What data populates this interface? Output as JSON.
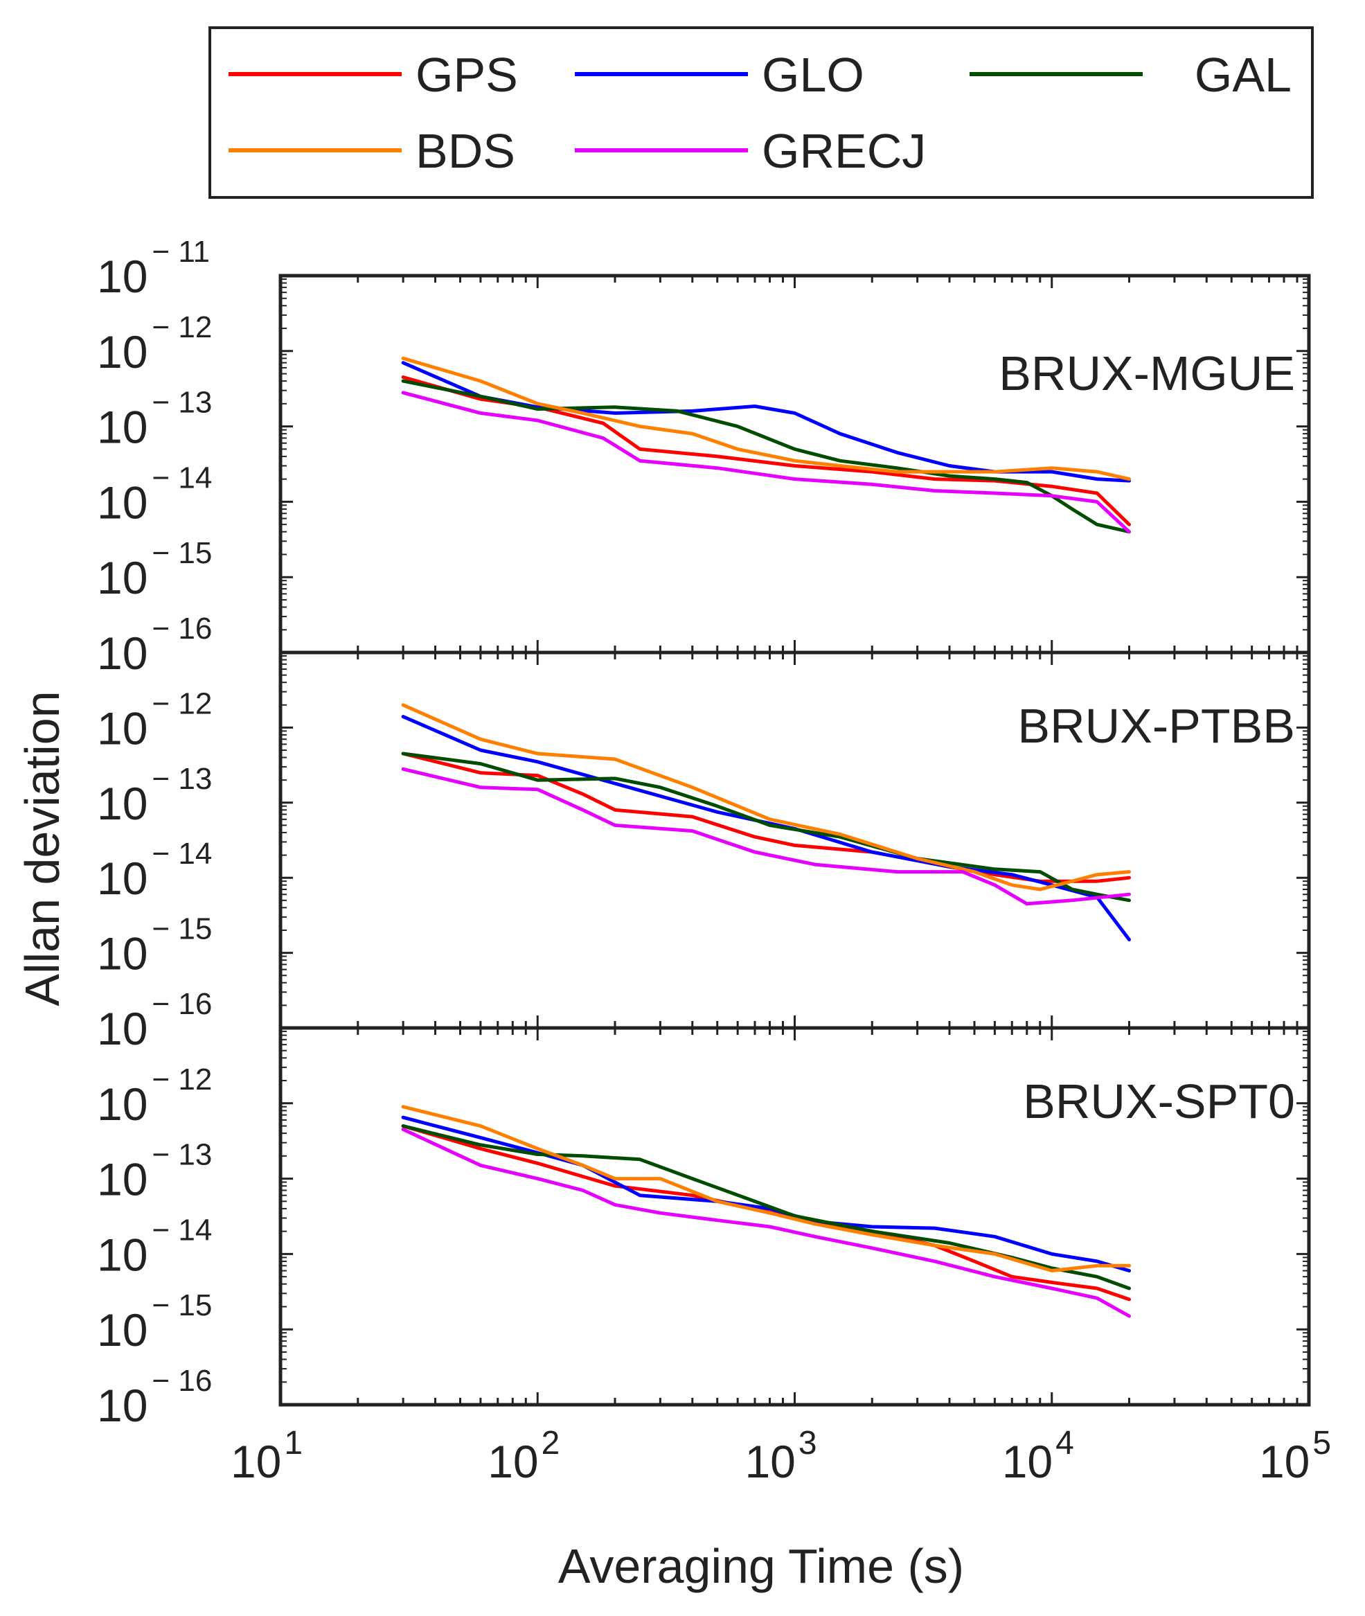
{
  "figure": {
    "xlabel": "Averaging Time (s)",
    "ylabel": "Allan deviation"
  },
  "legend": {
    "placement": "top",
    "entries": [
      {
        "name": "GPS",
        "color": "#ff0000"
      },
      {
        "name": "GLO",
        "color": "#0000ff"
      },
      {
        "name": "GAL",
        "color": "#004d00"
      },
      {
        "name": "BDS",
        "color": "#ff8000"
      },
      {
        "name": "GRECJ",
        "color": "#e600ff"
      }
    ]
  },
  "chart_data": [
    {
      "type": "line",
      "title": "BRUX-MGUE",
      "xlabel": "",
      "ylabel": "Allan deviation",
      "xscale": "log",
      "yscale": "log",
      "xlim": [
        10,
        100000
      ],
      "ylim": [
        1e-16,
        1e-11
      ],
      "xticks": [
        {
          "base": "10",
          "exp": "1"
        },
        {
          "base": "10",
          "exp": "2"
        },
        {
          "base": "10",
          "exp": "3"
        },
        {
          "base": "10",
          "exp": "4"
        },
        {
          "base": "10",
          "exp": "5"
        }
      ],
      "yticks": [
        {
          "base": "10",
          "exp": "− 11"
        },
        {
          "base": "10",
          "exp": "− 12"
        },
        {
          "base": "10",
          "exp": "− 13"
        },
        {
          "base": "10",
          "exp": "− 14"
        },
        {
          "base": "10",
          "exp": "− 15"
        },
        {
          "base": "10",
          "exp": "− 16"
        }
      ],
      "series": [
        {
          "name": "GPS",
          "color": "#ff0000",
          "x": [
            30,
            60,
            100,
            180,
            250,
            500,
            1000,
            2000,
            3500,
            6000,
            10000,
            15000,
            20000
          ],
          "y": [
            4.5e-13,
            2.3e-13,
            1.8e-13,
            1.1e-13,
            5e-14,
            4e-14,
            3e-14,
            2.5e-14,
            2e-14,
            1.9e-14,
            1.6e-14,
            1.3e-14,
            5e-15
          ]
        },
        {
          "name": "GLO",
          "color": "#0000ff",
          "x": [
            30,
            60,
            100,
            200,
            400,
            700,
            1000,
            1500,
            2500,
            4000,
            6000,
            10000,
            15000,
            20000
          ],
          "y": [
            7e-13,
            2.5e-13,
            1.8e-13,
            1.5e-13,
            1.6e-13,
            1.85e-13,
            1.5e-13,
            8e-14,
            4.5e-14,
            3e-14,
            2.5e-14,
            2.5e-14,
            2e-14,
            1.9e-14
          ]
        },
        {
          "name": "GAL",
          "color": "#004d00",
          "x": [
            30,
            60,
            100,
            200,
            350,
            600,
            1000,
            1500,
            2500,
            4000,
            6000,
            8000,
            10000,
            12000,
            15000,
            20000
          ],
          "y": [
            4e-13,
            2.5e-13,
            1.7e-13,
            1.8e-13,
            1.6e-13,
            1e-13,
            5e-14,
            3.5e-14,
            2.8e-14,
            2.2e-14,
            2e-14,
            1.8e-14,
            1.2e-14,
            8e-15,
            5e-15,
            4e-15
          ]
        },
        {
          "name": "BDS",
          "color": "#ff8000",
          "x": [
            30,
            60,
            100,
            150,
            250,
            400,
            600,
            1000,
            1500,
            2500,
            4000,
            6000,
            10000,
            15000,
            20000
          ],
          "y": [
            8e-13,
            4e-13,
            2e-13,
            1.5e-13,
            1e-13,
            8e-14,
            5e-14,
            3.5e-14,
            3e-14,
            2.5e-14,
            2.5e-14,
            2.5e-14,
            2.8e-14,
            2.5e-14,
            2e-14
          ]
        },
        {
          "name": "GRECJ",
          "color": "#e600ff",
          "x": [
            30,
            60,
            100,
            180,
            250,
            500,
            1000,
            2000,
            3500,
            6000,
            10000,
            15000,
            20000
          ],
          "y": [
            2.8e-13,
            1.5e-13,
            1.2e-13,
            7e-14,
            3.5e-14,
            2.8e-14,
            2e-14,
            1.7e-14,
            1.4e-14,
            1.3e-14,
            1.2e-14,
            1e-14,
            4e-15
          ]
        }
      ]
    },
    {
      "type": "line",
      "title": "BRUX-PTBB",
      "xlabel": "",
      "ylabel": "Allan deviation",
      "xscale": "log",
      "yscale": "log",
      "xlim": [
        10,
        100000
      ],
      "ylim": [
        1e-16,
        1e-11
      ],
      "xticks": [
        {
          "base": "10",
          "exp": "1"
        },
        {
          "base": "10",
          "exp": "2"
        },
        {
          "base": "10",
          "exp": "3"
        },
        {
          "base": "10",
          "exp": "4"
        },
        {
          "base": "10",
          "exp": "5"
        }
      ],
      "yticks": [
        {
          "base": "10",
          "exp": "− 12"
        },
        {
          "base": "10",
          "exp": "− 13"
        },
        {
          "base": "10",
          "exp": "− 14"
        },
        {
          "base": "10",
          "exp": "− 15"
        },
        {
          "base": "10",
          "exp": "− 16"
        }
      ],
      "series": [
        {
          "name": "GPS",
          "color": "#ff0000",
          "x": [
            30,
            60,
            100,
            150,
            200,
            400,
            700,
            1000,
            2000,
            4000,
            6000,
            9000,
            15000,
            20000
          ],
          "y": [
            4.5e-13,
            2.5e-13,
            2.3e-13,
            1.3e-13,
            8e-14,
            6.5e-14,
            3.5e-14,
            2.7e-14,
            2.2e-14,
            1.4e-14,
            1.1e-14,
            9e-15,
            9e-15,
            1e-14
          ]
        },
        {
          "name": "GLO",
          "color": "#0000ff",
          "x": [
            30,
            60,
            100,
            200,
            500,
            1000,
            2000,
            4000,
            7000,
            10000,
            15000,
            20000
          ],
          "y": [
            1.4e-12,
            5e-13,
            3.5e-13,
            1.8e-13,
            7.5e-14,
            4.5e-14,
            2.2e-14,
            1.4e-14,
            1.1e-14,
            8e-15,
            5.5e-15,
            1.5e-15
          ]
        },
        {
          "name": "GAL",
          "color": "#004d00",
          "x": [
            30,
            60,
            100,
            200,
            300,
            500,
            800,
            1500,
            3000,
            6000,
            9000,
            12000,
            15000,
            20000
          ],
          "y": [
            4.5e-13,
            3.3e-13,
            2e-13,
            2.1e-13,
            1.6e-13,
            9e-14,
            5e-14,
            3.5e-14,
            1.8e-14,
            1.3e-14,
            1.2e-14,
            7e-15,
            6e-15,
            5e-15
          ]
        },
        {
          "name": "BDS",
          "color": "#ff8000",
          "x": [
            30,
            60,
            100,
            200,
            400,
            800,
            1500,
            3000,
            5000,
            7000,
            9000,
            12000,
            15000,
            20000
          ],
          "y": [
            2e-12,
            7e-13,
            4.5e-13,
            3.8e-13,
            1.6e-13,
            6e-14,
            3.8e-14,
            1.8e-14,
            1.2e-14,
            8e-15,
            7e-15,
            9e-15,
            1.1e-14,
            1.2e-14
          ]
        },
        {
          "name": "GRECJ",
          "color": "#e600ff",
          "x": [
            30,
            60,
            100,
            150,
            200,
            400,
            700,
            1200,
            2500,
            4500,
            6000,
            8000,
            12000,
            20000
          ],
          "y": [
            2.8e-13,
            1.6e-13,
            1.5e-13,
            8e-14,
            5e-14,
            4.2e-14,
            2.2e-14,
            1.5e-14,
            1.2e-14,
            1.2e-14,
            8e-15,
            4.5e-15,
            5e-15,
            6e-15
          ]
        }
      ]
    },
    {
      "type": "line",
      "title": "BRUX-SPT0",
      "xlabel": "Averaging Time (s)",
      "ylabel": "Allan deviation",
      "xscale": "log",
      "yscale": "log",
      "xlim": [
        10,
        100000
      ],
      "ylim": [
        1e-16,
        1e-11
      ],
      "xticks": [
        {
          "base": "10",
          "exp": "1"
        },
        {
          "base": "10",
          "exp": "2"
        },
        {
          "base": "10",
          "exp": "3"
        },
        {
          "base": "10",
          "exp": "4"
        },
        {
          "base": "10",
          "exp": "5"
        }
      ],
      "yticks": [
        {
          "base": "10",
          "exp": "− 12"
        },
        {
          "base": "10",
          "exp": "− 13"
        },
        {
          "base": "10",
          "exp": "− 14"
        },
        {
          "base": "10",
          "exp": "− 15"
        },
        {
          "base": "10",
          "exp": "− 16"
        }
      ],
      "series": [
        {
          "name": "GPS",
          "color": "#ff0000",
          "x": [
            30,
            60,
            100,
            200,
            400,
            700,
            1000,
            2000,
            3500,
            5000,
            7000,
            10000,
            15000,
            20000
          ],
          "y": [
            5e-13,
            2.5e-13,
            1.6e-13,
            8e-14,
            6e-14,
            4e-14,
            3e-14,
            2e-14,
            1.3e-14,
            8e-15,
            5e-15,
            4.2e-15,
            3.5e-15,
            2.5e-15
          ]
        },
        {
          "name": "GLO",
          "color": "#0000ff",
          "x": [
            30,
            60,
            100,
            150,
            250,
            500,
            800,
            1200,
            2000,
            3500,
            6000,
            10000,
            15000,
            20000
          ],
          "y": [
            6.5e-13,
            3.5e-13,
            2.2e-13,
            1.5e-13,
            6e-14,
            5e-14,
            4e-14,
            2.7e-14,
            2.3e-14,
            2.2e-14,
            1.7e-14,
            1e-14,
            8e-15,
            6e-15
          ]
        },
        {
          "name": "GAL",
          "color": "#004d00",
          "x": [
            30,
            60,
            100,
            150,
            250,
            400,
            700,
            1000,
            2000,
            4000,
            7000,
            10000,
            15000,
            20000
          ],
          "y": [
            5e-13,
            2.8e-13,
            2.1e-13,
            2e-13,
            1.8e-13,
            1e-13,
            5e-14,
            3.2e-14,
            2e-14,
            1.4e-14,
            9e-15,
            6.5e-15,
            5e-15,
            3.5e-15
          ]
        },
        {
          "name": "BDS",
          "color": "#ff8000",
          "x": [
            30,
            60,
            100,
            150,
            200,
            300,
            500,
            800,
            1200,
            2000,
            3500,
            6000,
            10000,
            15000,
            20000
          ],
          "y": [
            9e-13,
            5e-13,
            2.5e-13,
            1.5e-13,
            1e-13,
            1e-13,
            5e-14,
            3.5e-14,
            2.5e-14,
            1.8e-14,
            1.3e-14,
            1e-14,
            6e-15,
            7e-15,
            7e-15
          ]
        },
        {
          "name": "GRECJ",
          "color": "#e600ff",
          "x": [
            30,
            60,
            100,
            150,
            200,
            300,
            500,
            800,
            1200,
            2000,
            3500,
            6000,
            10000,
            15000,
            20000
          ],
          "y": [
            4.5e-13,
            1.5e-13,
            1e-13,
            7e-14,
            4.5e-14,
            3.5e-14,
            2.8e-14,
            2.3e-14,
            1.7e-14,
            1.2e-14,
            8e-15,
            5e-15,
            3.5e-15,
            2.6e-15,
            1.5e-15
          ]
        }
      ]
    }
  ]
}
